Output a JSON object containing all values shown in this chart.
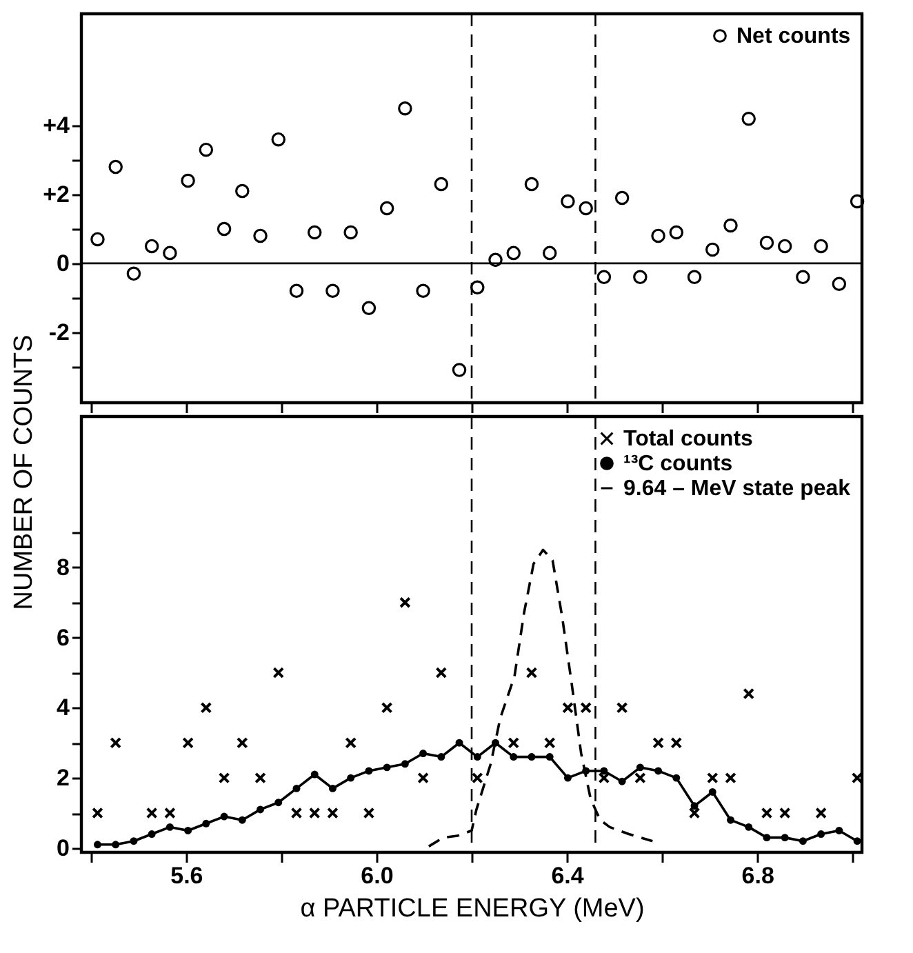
{
  "chart_data": [
    {
      "type": "scatter",
      "x": [
        5.414,
        5.452,
        5.49,
        5.528,
        5.566,
        5.604,
        5.642,
        5.68,
        5.718,
        5.756,
        5.794,
        5.832,
        5.87,
        5.908,
        5.946,
        5.984,
        6.022,
        6.06,
        6.098,
        6.136,
        6.174,
        6.212,
        6.25,
        6.288,
        6.326,
        6.364,
        6.402,
        6.44,
        6.478,
        6.516,
        6.554,
        6.592,
        6.63,
        6.668,
        6.706,
        6.744,
        6.782,
        6.82,
        6.858,
        6.896,
        6.934,
        6.972,
        7.01
      ],
      "series": [
        {
          "name": "Net counts",
          "marker": "circle",
          "color": "#000000",
          "values": [
            0.7,
            2.8,
            -0.3,
            0.5,
            0.3,
            2.4,
            3.3,
            1.0,
            2.1,
            0.8,
            3.6,
            -0.8,
            0.9,
            -0.8,
            0.9,
            -1.3,
            1.6,
            4.5,
            -0.8,
            2.3,
            -3.1,
            -0.7,
            0.1,
            0.3,
            2.3,
            0.3,
            1.8,
            1.6,
            -0.4,
            1.9,
            -0.4,
            0.8,
            0.9,
            -0.4,
            0.4,
            1.1,
            4.2,
            0.6,
            0.5,
            -0.4,
            0.5,
            -0.6,
            1.8
          ]
        }
      ],
      "xlim": [
        5.38,
        7.02
      ],
      "xticks": [
        {
          "value": 5.4,
          "label": null
        },
        {
          "value": 5.6,
          "label": null
        },
        {
          "value": 5.8,
          "label": null
        },
        {
          "value": 6.0,
          "label": null
        },
        {
          "value": 6.2,
          "label": null
        },
        {
          "value": 6.4,
          "label": null
        },
        {
          "value": 6.6,
          "label": null
        },
        {
          "value": 6.8,
          "label": null
        },
        {
          "value": 7.0,
          "label": null
        }
      ],
      "ylim": [
        -4.05,
        7.25
      ],
      "yticks": [
        {
          "value": -3,
          "label": null
        },
        -2,
        {
          "value": -1,
          "label": null
        },
        0,
        {
          "value": 1,
          "label": null
        },
        {
          "value": 2,
          "label": "+2"
        },
        {
          "value": 3,
          "label": null
        },
        {
          "value": 4,
          "label": "+4"
        }
      ],
      "tick_labels": "y",
      "ref_lines": [
        {
          "axis": "y",
          "value": 0,
          "label": null,
          "color": "#000000",
          "line_style": "solid"
        },
        {
          "axis": "x",
          "value": 6.2,
          "label": null,
          "color": "#000000",
          "line_style": "dashed"
        },
        {
          "axis": "x",
          "value": 6.46,
          "label": null,
          "color": "#000000",
          "line_style": "dashed"
        }
      ],
      "legend": "top right"
    },
    {
      "type": "line",
      "xlabel": "α PARTICLE ENERGY (MeV)",
      "ylabel": "NUMBER OF COUNTS",
      "x": [
        5.414,
        5.452,
        5.49,
        5.528,
        5.566,
        5.604,
        5.642,
        5.68,
        5.718,
        5.756,
        5.794,
        5.832,
        5.87,
        5.908,
        5.946,
        5.984,
        6.022,
        6.06,
        6.098,
        6.136,
        6.174,
        6.212,
        6.25,
        6.288,
        6.326,
        6.364,
        6.402,
        6.44,
        6.478,
        6.516,
        6.554,
        6.592,
        6.63,
        6.668,
        6.706,
        6.744,
        6.782,
        6.82,
        6.858,
        6.896,
        6.934,
        6.972,
        7.01
      ],
      "series": [
        {
          "name": "Total counts",
          "type": "scatter",
          "marker": "cross",
          "color": "#000000",
          "x": [
            5.414,
            5.452,
            5.528,
            5.566,
            5.604,
            5.642,
            5.68,
            5.718,
            5.756,
            5.794,
            5.832,
            5.87,
            5.908,
            5.946,
            5.984,
            6.022,
            6.06,
            6.098,
            6.136,
            6.212,
            6.288,
            6.326,
            6.364,
            6.402,
            6.44,
            6.478,
            6.516,
            6.554,
            6.592,
            6.63,
            6.668,
            6.706,
            6.744,
            6.782,
            6.82,
            6.858,
            6.934,
            7.01
          ],
          "values": [
            1,
            3,
            1,
            1,
            3,
            4,
            2,
            3,
            2,
            5,
            1,
            1,
            1,
            3,
            1,
            4,
            7,
            2,
            5,
            2,
            3,
            5,
            3,
            4,
            4,
            2,
            4,
            2,
            3,
            3,
            1,
            2,
            2,
            4.4,
            1,
            1,
            1,
            2
          ]
        },
        {
          "name": "¹³C counts",
          "marker": "circle",
          "line_style": "solid",
          "color": "#000000",
          "values": [
            0.1,
            0.1,
            0.2,
            0.4,
            0.6,
            0.5,
            0.7,
            0.9,
            0.8,
            1.1,
            1.3,
            1.7,
            2.1,
            1.7,
            2.0,
            2.2,
            2.3,
            2.4,
            2.7,
            2.6,
            3.0,
            2.6,
            3.0,
            2.6,
            2.6,
            2.6,
            2.0,
            2.2,
            2.2,
            1.9,
            2.3,
            2.2,
            2.0,
            1.2,
            1.6,
            0.8,
            0.6,
            0.3,
            0.3,
            0.2,
            0.4,
            0.5,
            0.2
          ]
        },
        {
          "name": "9.64 – MeV state peak",
          "marker": "none",
          "line_style": "dashed",
          "color": "#000000",
          "x": [
            6.11,
            6.14,
            6.17,
            6.2,
            6.21,
            6.24,
            6.26,
            6.29,
            6.31,
            6.33,
            6.35,
            6.37,
            6.39,
            6.41,
            6.43,
            6.45,
            6.47,
            6.49,
            6.53,
            6.58
          ],
          "values": [
            0.05,
            0.3,
            0.35,
            0.5,
            1.1,
            2.4,
            3.7,
            4.9,
            6.7,
            8.1,
            8.5,
            8.2,
            6.6,
            4.7,
            2.7,
            1.4,
            0.8,
            0.6,
            0.4,
            0.2
          ]
        }
      ],
      "xlim": [
        5.38,
        7.02
      ],
      "xticks": [
        {
          "value": 5.4,
          "label": null
        },
        5.6,
        {
          "value": 5.8,
          "label": null
        },
        {
          "value": 6.0,
          "label": "6.0"
        },
        {
          "value": 6.2,
          "label": null
        },
        6.4,
        {
          "value": 6.6,
          "label": null
        },
        6.8,
        {
          "value": 7.0,
          "label": null
        }
      ],
      "ylim": [
        -0.12,
        12.3
      ],
      "yticks": [
        0,
        {
          "value": 1,
          "label": null
        },
        2,
        {
          "value": 3,
          "label": null
        },
        4,
        {
          "value": 5,
          "label": null
        },
        6,
        {
          "value": 7,
          "label": null
        },
        8,
        {
          "value": 9,
          "label": null
        }
      ],
      "ref_lines": [
        {
          "axis": "x",
          "value": 6.2,
          "label": null,
          "color": "#000000",
          "line_style": "dashed"
        },
        {
          "axis": "x",
          "value": 6.46,
          "label": null,
          "color": "#000000",
          "line_style": "dashed"
        }
      ],
      "legend": "top right"
    }
  ]
}
